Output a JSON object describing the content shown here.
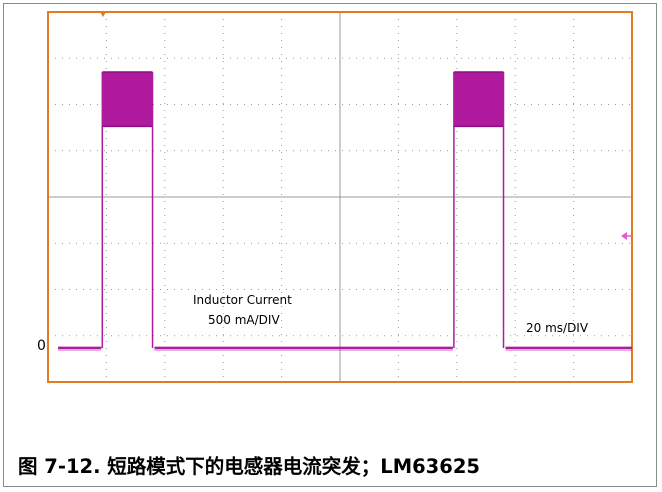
{
  "chart_data": {
    "type": "line",
    "title": "",
    "xlabel": "",
    "ylabel": "",
    "ylim": [
      0,
      4
    ],
    "xlim": [
      0,
      200
    ],
    "grid": true,
    "colors": {
      "trace": "#b01a9e",
      "frame": "#e07c1f",
      "grid": "#9a9a9a",
      "marker": "#e35ad4"
    },
    "annotations": {
      "channel": "Inductor Current",
      "vscale": "500 mA/DIV",
      "hscale": "20 ms/DIV",
      "ground_marker": "0"
    },
    "series": [
      {
        "x": [
          0,
          18.6,
          18.6,
          18.6,
          35.8,
          35.8,
          35.8,
          139.0,
          139.0,
          139.0,
          156.0,
          156.0,
          156.0,
          200
        ],
        "y": [
          0,
          0,
          3.55,
          3.55,
          3.55,
          3.55,
          0,
          0,
          3.55,
          3.55,
          3.55,
          3.55,
          0,
          0
        ],
        "ripple_band": [
          2.85,
          3.55
        ],
        "burst_intervals": [
          [
            18.6,
            35.8
          ],
          [
            139.0,
            156.0
          ]
        ]
      }
    ]
  },
  "caption": "图 7-12. 短路模式下的电感器电流突发；LM63625"
}
